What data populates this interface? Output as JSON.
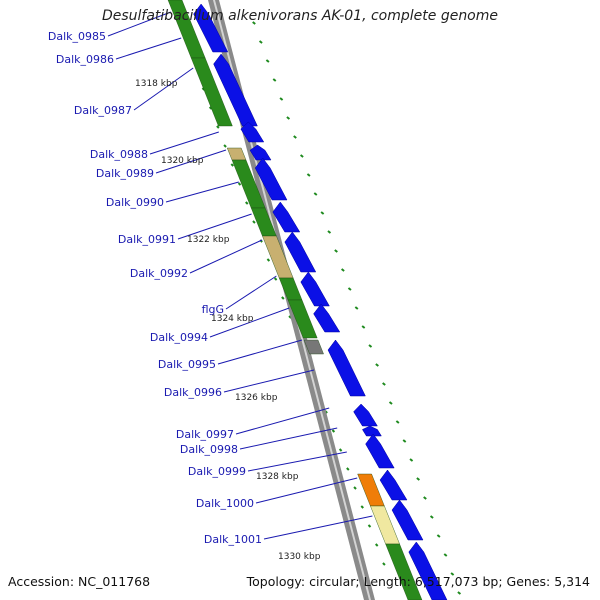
{
  "title": "Desulfatibacillum alkenivorans AK-01, complete genome",
  "accession": "Accession: NC_011768",
  "topology": "Topology: circular; Length: 6,517,073 bp; Genes: 5,314",
  "position_labels": [
    "1318 kbp",
    "1320 kbp",
    "1322 kbp",
    "1324 kbp",
    "1326 kbp",
    "1328 kbp",
    "1330 kbp"
  ],
  "genes": [
    {
      "name": "Dalk_0985"
    },
    {
      "name": "Dalk_0986"
    },
    {
      "name": "Dalk_0987"
    },
    {
      "name": "Dalk_0988"
    },
    {
      "name": "Dalk_0989"
    },
    {
      "name": "Dalk_0990"
    },
    {
      "name": "Dalk_0991"
    },
    {
      "name": "Dalk_0992"
    },
    {
      "name": "flgG"
    },
    {
      "name": "Dalk_0994"
    },
    {
      "name": "Dalk_0995"
    },
    {
      "name": "Dalk_0996"
    },
    {
      "name": "Dalk_0997"
    },
    {
      "name": "Dalk_0998"
    },
    {
      "name": "Dalk_0999"
    },
    {
      "name": "Dalk_1000"
    },
    {
      "name": "Dalk_1001"
    }
  ],
  "colors": {
    "cds": "#0b10e6",
    "cog_green": "#2a8a1c",
    "cog_tan": "#c8b070",
    "cog_orange": "#ef7d08",
    "cog_pale": "#f0e8a0",
    "cog_gray": "#777777",
    "backbone": "#8a8a8a",
    "gc_ticks": "#1e8a1e",
    "label": "#1a1ab0"
  }
}
